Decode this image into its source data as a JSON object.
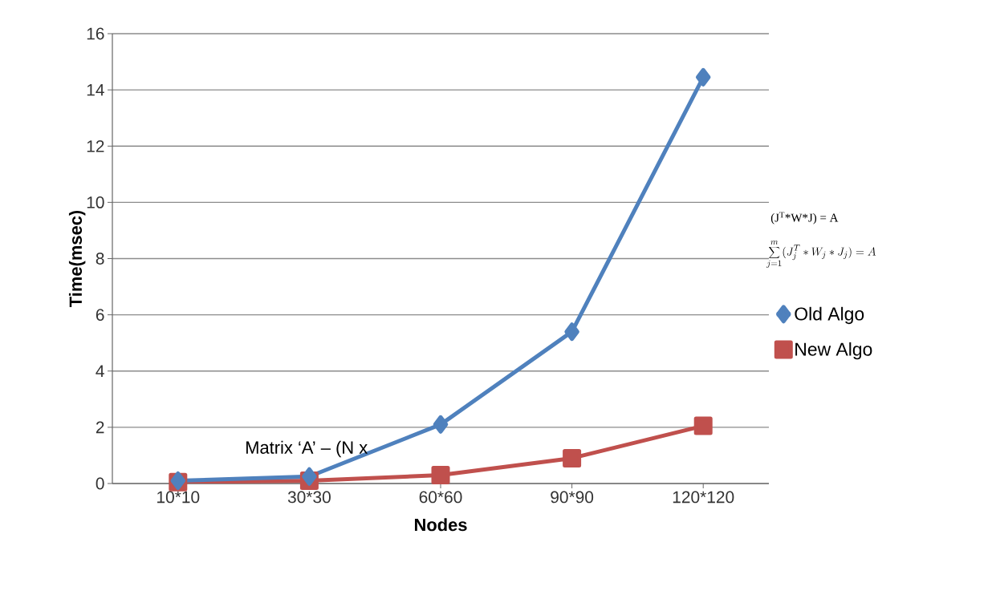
{
  "chart_data": {
    "type": "line",
    "xlabel": "Nodes",
    "ylabel": "Time(msec)",
    "categories": [
      "10*10",
      "30*30",
      "60*60",
      "90*90",
      "120*120"
    ],
    "series": [
      {
        "name": "Old Algo",
        "color": "#4f81bd",
        "marker": "diamond",
        "values": [
          0.1,
          0.25,
          2.1,
          5.4,
          14.45
        ]
      },
      {
        "name": "New Algo",
        "color": "#c0504d",
        "marker": "square",
        "values": [
          0.05,
          0.1,
          0.3,
          0.9,
          2.05
        ]
      }
    ],
    "ylim": [
      0,
      16
    ],
    "yticks": [
      0,
      2,
      4,
      6,
      8,
      10,
      12,
      14,
      16
    ],
    "grid": "y",
    "legend": "right",
    "annotations": [
      "(J$^{T}$*W*J) = A",
      "\\sum_{j=1}^{m}(J_j^T * W_j * J_j) = A",
      "Matrix  ‘A’  –  (N  x"
    ]
  }
}
